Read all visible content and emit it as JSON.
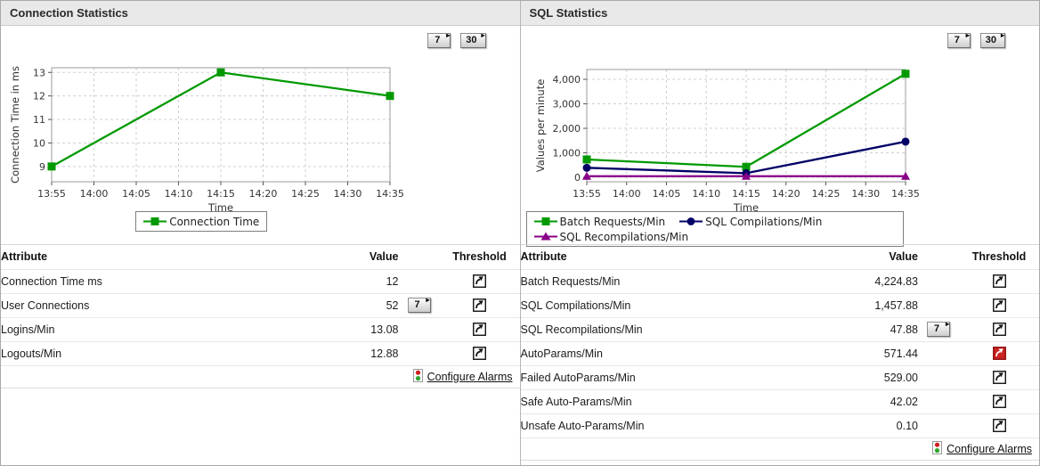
{
  "colors": {
    "series_green": "#009900",
    "series_navy": "#000066",
    "series_purple": "#880088",
    "threshold_alert_red": "#cc2422",
    "titlebar_bg": "#e9e9e9"
  },
  "icons": {
    "threshold": "curved-up-right-arrow-icon",
    "configure_alarms": "traffic-light-icon",
    "history_button_arrow": "small-right-triangle-icon"
  },
  "panels": [
    {
      "title": "Connection Statistics",
      "range_buttons": [
        "7",
        "30"
      ],
      "chart_data": {
        "type": "line",
        "title": "",
        "xlabel": "Time",
        "ylabel": "Connection Time in ms",
        "x_ticks": [
          "13:55",
          "14:00",
          "14:05",
          "14:10",
          "14:15",
          "14:20",
          "14:25",
          "14:30",
          "14:35"
        ],
        "y_ticks": [
          9,
          10,
          11,
          12,
          13
        ],
        "ylim": [
          8.35,
          13.2
        ],
        "grid": true,
        "legend_position": "bottom",
        "series": [
          {
            "name": "Connection Time",
            "color": "#009900",
            "marker": "square",
            "x": [
              "13:55",
              "14:15",
              "14:35"
            ],
            "values": [
              9,
              13,
              12
            ]
          }
        ]
      },
      "table": {
        "headers": [
          "Attribute",
          "Value",
          "Threshold"
        ],
        "rows": [
          {
            "attribute": "Connection Time ms",
            "value": "12",
            "history_button": null,
            "threshold": "normal"
          },
          {
            "attribute": "User Connections",
            "value": "52",
            "history_button": "7",
            "threshold": "normal"
          },
          {
            "attribute": "Logins/Min",
            "value": "13.08",
            "history_button": null,
            "threshold": "normal"
          },
          {
            "attribute": "Logouts/Min",
            "value": "12.88",
            "history_button": null,
            "threshold": "normal"
          }
        ],
        "footer_link": "Configure Alarms"
      }
    },
    {
      "title": "SQL Statistics",
      "range_buttons": [
        "7",
        "30"
      ],
      "chart_data": {
        "type": "line",
        "title": "",
        "xlabel": "Time",
        "ylabel": "Values per minute",
        "x_ticks": [
          "13:55",
          "14:00",
          "14:05",
          "14:10",
          "14:15",
          "14:20",
          "14:25",
          "14:30",
          "14:35"
        ],
        "y_ticks": [
          0,
          1000,
          2000,
          3000,
          4000
        ],
        "ylim": [
          -180,
          4400
        ],
        "grid": true,
        "legend_position": "bottom",
        "series": [
          {
            "name": "Batch Requests/Min",
            "color": "#009900",
            "marker": "square",
            "x": [
              "13:55",
              "14:15",
              "14:35"
            ],
            "values": [
              730,
              430,
              4224.83
            ]
          },
          {
            "name": "SQL Compilations/Min",
            "color": "#000066",
            "marker": "circle",
            "x": [
              "13:55",
              "14:15",
              "14:35"
            ],
            "values": [
              390,
              170,
              1457.88
            ]
          },
          {
            "name": "SQL Recompilations/Min",
            "color": "#880088",
            "marker": "triangle",
            "x": [
              "13:55",
              "14:15",
              "14:35"
            ],
            "values": [
              48,
              48,
              47.88
            ]
          }
        ]
      },
      "table": {
        "headers": [
          "Attribute",
          "Value",
          "Threshold"
        ],
        "rows": [
          {
            "attribute": "Batch Requests/Min",
            "value": "4,224.83",
            "history_button": null,
            "threshold": "normal"
          },
          {
            "attribute": "SQL Compilations/Min",
            "value": "1,457.88",
            "history_button": null,
            "threshold": "normal"
          },
          {
            "attribute": "SQL Recompilations/Min",
            "value": "47.88",
            "history_button": "7",
            "threshold": "normal"
          },
          {
            "attribute": "AutoParams/Min",
            "value": "571.44",
            "history_button": null,
            "threshold": "breached"
          },
          {
            "attribute": "Failed AutoParams/Min",
            "value": "529.00",
            "history_button": null,
            "threshold": "normal"
          },
          {
            "attribute": "Safe Auto-Params/Min",
            "value": "42.02",
            "history_button": null,
            "threshold": "normal"
          },
          {
            "attribute": "Unsafe Auto-Params/Min",
            "value": "0.10",
            "history_button": null,
            "threshold": "normal"
          }
        ],
        "footer_link": "Configure Alarms"
      }
    }
  ]
}
